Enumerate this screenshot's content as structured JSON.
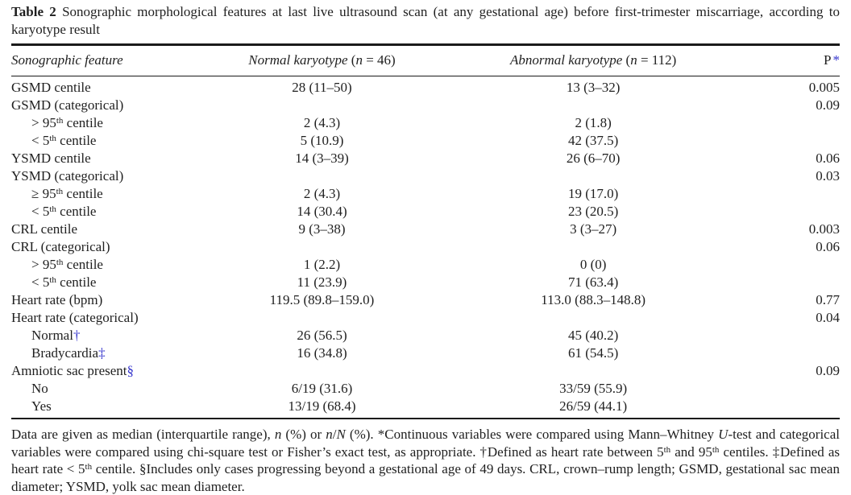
{
  "colors": {
    "text": "#1f1f1f",
    "rule": "#1a1a1a",
    "accent_blue": "#3333cc"
  },
  "caption": {
    "parts": [
      {
        "t": "Table 2",
        "b": true
      },
      {
        "t": " Sonographic morphological features at last live ultrasound scan (at any gestational age) before first-trimester miscarriage, according to karyotype result"
      }
    ]
  },
  "table": {
    "columns": [
      {
        "id": "feature",
        "parts": [
          {
            "t": "Sonographic feature",
            "i": true
          }
        ]
      },
      {
        "id": "normal",
        "parts": [
          {
            "t": "Normal karyotype ",
            "i": true
          },
          {
            "t": "("
          },
          {
            "t": "n",
            "i": true
          },
          {
            "t": " = 46)"
          }
        ]
      },
      {
        "id": "abnormal",
        "parts": [
          {
            "t": "Abnormal karyotype ",
            "i": true
          },
          {
            "t": "("
          },
          {
            "t": "n",
            "i": true
          },
          {
            "t": " = 112)"
          }
        ]
      },
      {
        "id": "p",
        "parts": [
          {
            "t": "P"
          },
          {
            "t": "*",
            "blue": true
          }
        ]
      }
    ],
    "rows": [
      {
        "indent": false,
        "feature": [
          {
            "t": "GSMD centile"
          }
        ],
        "normal": "28 (11–50)",
        "abnormal": "13 (3–32)",
        "p": "0.005"
      },
      {
        "indent": false,
        "feature": [
          {
            "t": "GSMD (categorical)"
          }
        ],
        "normal": "",
        "abnormal": "",
        "p": "0.09"
      },
      {
        "indent": true,
        "feature": [
          {
            "t": "> 95"
          },
          {
            "t": "th",
            "sup": true
          },
          {
            "t": " centile"
          }
        ],
        "normal": "2 (4.3)",
        "abnormal": "2 (1.8)",
        "p": ""
      },
      {
        "indent": true,
        "feature": [
          {
            "t": "< 5"
          },
          {
            "t": "th",
            "sup": true
          },
          {
            "t": " centile"
          }
        ],
        "normal": "5 (10.9)",
        "abnormal": "42 (37.5)",
        "p": ""
      },
      {
        "indent": false,
        "feature": [
          {
            "t": "YSMD centile"
          }
        ],
        "normal": "14 (3–39)",
        "abnormal": "26 (6–70)",
        "p": "0.06"
      },
      {
        "indent": false,
        "feature": [
          {
            "t": "YSMD (categorical)"
          }
        ],
        "normal": "",
        "abnormal": "",
        "p": "0.03"
      },
      {
        "indent": true,
        "feature": [
          {
            "t": "≥ 95"
          },
          {
            "t": "th",
            "sup": true
          },
          {
            "t": " centile"
          }
        ],
        "normal": "2 (4.3)",
        "abnormal": "19 (17.0)",
        "p": ""
      },
      {
        "indent": true,
        "feature": [
          {
            "t": "< 5"
          },
          {
            "t": "th",
            "sup": true
          },
          {
            "t": " centile"
          }
        ],
        "normal": "14 (30.4)",
        "abnormal": "23 (20.5)",
        "p": ""
      },
      {
        "indent": false,
        "feature": [
          {
            "t": "CRL centile"
          }
        ],
        "normal": "9 (3–38)",
        "abnormal": "3 (3–27)",
        "p": "0.003"
      },
      {
        "indent": false,
        "feature": [
          {
            "t": "CRL (categorical)"
          }
        ],
        "normal": "",
        "abnormal": "",
        "p": "0.06"
      },
      {
        "indent": true,
        "feature": [
          {
            "t": "> 95"
          },
          {
            "t": "th",
            "sup": true
          },
          {
            "t": " centile"
          }
        ],
        "normal": "1 (2.2)",
        "abnormal": "0 (0)",
        "p": ""
      },
      {
        "indent": true,
        "feature": [
          {
            "t": "< 5"
          },
          {
            "t": "th",
            "sup": true
          },
          {
            "t": " centile"
          }
        ],
        "normal": "11 (23.9)",
        "abnormal": "71 (63.4)",
        "p": ""
      },
      {
        "indent": false,
        "feature": [
          {
            "t": "Heart rate (bpm)"
          }
        ],
        "normal": "119.5 (89.8–159.0)",
        "abnormal": "113.0 (88.3–148.8)",
        "p": "0.77"
      },
      {
        "indent": false,
        "feature": [
          {
            "t": "Heart rate (categorical)"
          }
        ],
        "normal": "",
        "abnormal": "",
        "p": "0.04"
      },
      {
        "indent": true,
        "feature": [
          {
            "t": "Normal"
          },
          {
            "t": "†",
            "blue": true
          }
        ],
        "normal": "26 (56.5)",
        "abnormal": "45 (40.2)",
        "p": ""
      },
      {
        "indent": true,
        "feature": [
          {
            "t": "Bradycardia"
          },
          {
            "t": "‡",
            "blue": true
          }
        ],
        "normal": "16 (34.8)",
        "abnormal": "61 (54.5)",
        "p": ""
      },
      {
        "indent": false,
        "feature": [
          {
            "t": "Amniotic sac present"
          },
          {
            "t": "§",
            "blue": true
          }
        ],
        "normal": "",
        "abnormal": "",
        "p": "0.09"
      },
      {
        "indent": true,
        "feature": [
          {
            "t": "No"
          }
        ],
        "normal": "6/19 (31.6)",
        "abnormal": "33/59 (55.9)",
        "p": ""
      },
      {
        "indent": true,
        "feature": [
          {
            "t": "Yes"
          }
        ],
        "normal": "13/19 (68.4)",
        "abnormal": "26/59 (44.1)",
        "p": ""
      }
    ]
  },
  "footnote": {
    "parts": [
      {
        "t": "Data are given as median (interquartile range), "
      },
      {
        "t": "n",
        "i": true
      },
      {
        "t": " (%) or "
      },
      {
        "t": "n",
        "i": true
      },
      {
        "t": "/"
      },
      {
        "t": "N",
        "i": true
      },
      {
        "t": " (%). *Continuous variables were compared using Mann–Whitney "
      },
      {
        "t": "U",
        "i": true
      },
      {
        "t": "-test and categorical variables were compared using chi-square test or Fisher’s exact test, as appropriate. †Defined as heart rate between 5"
      },
      {
        "t": "th",
        "sup": true
      },
      {
        "t": " and 95"
      },
      {
        "t": "th",
        "sup": true
      },
      {
        "t": " centiles. ‡Defined as heart rate < 5"
      },
      {
        "t": "th",
        "sup": true
      },
      {
        "t": " centile. §Includes only cases progressing beyond a gestational age of 49 days. CRL, crown–rump length; GSMD, gestational sac mean diameter; YSMD, yolk sac mean diameter."
      }
    ]
  }
}
